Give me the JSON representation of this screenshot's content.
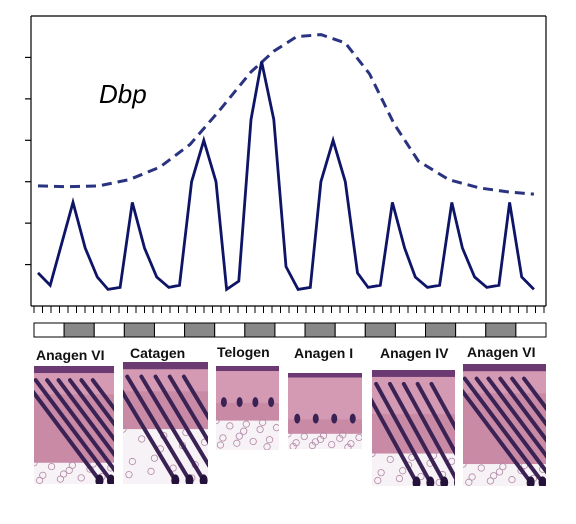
{
  "chart_data": {
    "type": "line",
    "annotation": "Dbp",
    "x_range": [
      0,
      33
    ],
    "y_range": [
      0,
      7
    ],
    "grid": false,
    "legend": "none",
    "series": [
      {
        "style": "solid",
        "color": "#0e1466",
        "x": [
          0,
          0.8,
          2.3,
          3.1,
          3.9,
          4.6,
          5.4,
          6.2,
          7.0,
          7.8,
          8.6,
          9.3,
          10.1,
          10.9,
          11.7,
          12.4,
          13.2,
          14.0,
          14.7,
          15.5,
          16.3,
          17.1,
          17.9,
          18.6,
          19.4,
          20.2,
          21.0,
          21.7,
          22.5,
          23.3,
          24.1,
          24.8,
          25.6,
          26.4,
          27.2,
          27.9,
          28.7,
          29.5,
          30.3,
          31.0,
          31.8,
          32.6
        ],
        "y": [
          0.8,
          0.5,
          2.5,
          1.4,
          0.7,
          0.4,
          0.45,
          2.5,
          1.4,
          0.7,
          0.45,
          0.5,
          3.0,
          4.0,
          3.0,
          0.4,
          0.6,
          4.5,
          5.9,
          4.5,
          0.95,
          0.4,
          0.45,
          3.0,
          4.0,
          3.0,
          0.8,
          0.45,
          0.5,
          2.5,
          1.4,
          0.7,
          0.45,
          0.5,
          2.5,
          1.4,
          0.7,
          0.45,
          0.5,
          2.5,
          0.7,
          0.4
        ]
      },
      {
        "style": "dashed",
        "color": "#2a3380",
        "x": [
          0,
          2,
          4,
          6,
          8,
          10,
          12,
          14,
          15.5,
          17,
          18.6,
          20.2,
          21.8,
          23.4,
          25,
          27,
          29,
          31,
          32.6
        ],
        "y": [
          2.9,
          2.88,
          2.9,
          3.05,
          3.35,
          3.9,
          4.75,
          5.65,
          6.15,
          6.5,
          6.55,
          6.35,
          5.6,
          4.4,
          3.5,
          3.05,
          2.85,
          2.75,
          2.7
        ]
      }
    ]
  },
  "timeline": {
    "cells": [
      "light",
      "dark",
      "light",
      "dark",
      "light",
      "dark",
      "light",
      "dark",
      "light",
      "dark",
      "light",
      "dark",
      "light",
      "dark",
      "light",
      "dark",
      "light"
    ],
    "light_color": "#ffffff",
    "dark_color": "#888888"
  },
  "stages": [
    {
      "label": "Anagen VI"
    },
    {
      "label": "Catagen"
    },
    {
      "label": "Telogen"
    },
    {
      "label": "Anagen I"
    },
    {
      "label": "Anagen IV"
    },
    {
      "label": "Anagen VI"
    }
  ],
  "colors": {
    "tissue_pink": "#c98aa6",
    "follicle_purple": "#3a2255",
    "fat_white": "#f6f2f5"
  }
}
